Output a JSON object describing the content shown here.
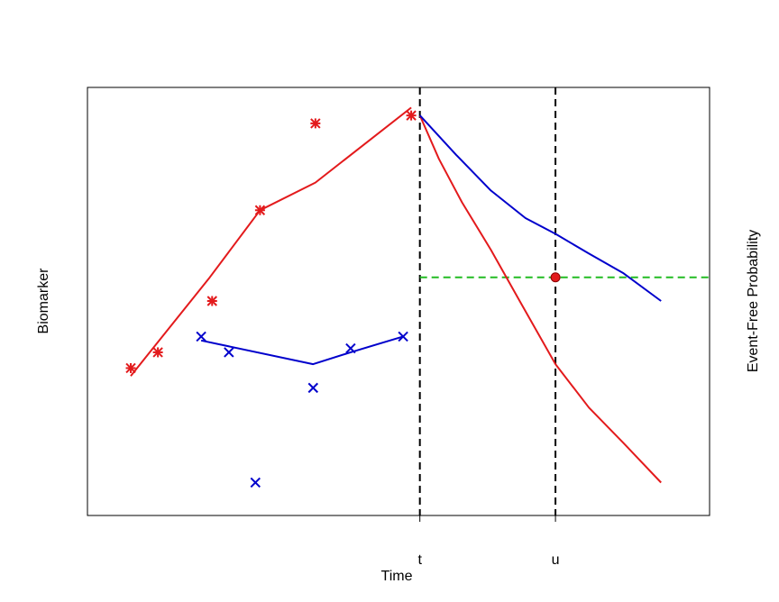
{
  "chart_data": {
    "type": "line",
    "title": "",
    "xlabel": "Time",
    "ylabel_left": "Biomarker",
    "ylabel_right": "Event-Free Probability",
    "x_ticks": [
      "t",
      "u"
    ],
    "xlim": [
      0,
      10
    ],
    "ylim_left": [
      0,
      10
    ],
    "ylim_right": [
      0,
      1
    ],
    "grid": false,
    "legend": "none",
    "vertical_lines": [
      {
        "label": "t",
        "x": 5.37,
        "color": "#000000",
        "dash": true
      },
      {
        "label": "u",
        "x": 7.72,
        "color": "#000000",
        "dash": true
      }
    ],
    "threshold": {
      "y": 0.56,
      "x_from": 5.37,
      "x_to": 10,
      "color": "#22BB22",
      "dash": true
    },
    "threshold_point": {
      "x": 7.72,
      "y": 0.56,
      "color": "#E31A1C"
    },
    "series": [
      {
        "color": "#E31A1C",
        "points": [
          {
            "x": 0.36,
            "y": 3.3
          },
          {
            "x": 0.83,
            "y": 3.7
          },
          {
            "x": 1.77,
            "y": 5.0
          },
          {
            "x": 2.6,
            "y": 7.3
          },
          {
            "x": 3.56,
            "y": 9.5
          },
          {
            "x": 5.22,
            "y": 9.7
          }
        ],
        "line": [
          {
            "x": 0.36,
            "y": 3.1
          },
          {
            "x": 1.73,
            "y": 5.6
          },
          {
            "x": 2.6,
            "y": 7.3
          },
          {
            "x": 3.56,
            "y": 8.0
          },
          {
            "x": 5.22,
            "y": 9.9
          }
        ],
        "survival": [
          {
            "x": 5.37,
            "y": 0.97
          },
          {
            "x": 5.7,
            "y": 0.86
          },
          {
            "x": 6.1,
            "y": 0.75
          },
          {
            "x": 6.6,
            "y": 0.63
          },
          {
            "x": 7.1,
            "y": 0.5
          },
          {
            "x": 7.72,
            "y": 0.34
          },
          {
            "x": 8.3,
            "y": 0.23
          },
          {
            "x": 8.9,
            "y": 0.14
          },
          {
            "x": 9.55,
            "y": 0.04
          }
        ]
      },
      {
        "color": "#0000CC",
        "points": [
          {
            "x": 1.58,
            "y": 4.1
          },
          {
            "x": 2.06,
            "y": 3.7
          },
          {
            "x": 2.52,
            "y": 0.4
          },
          {
            "x": 3.52,
            "y": 2.8
          },
          {
            "x": 4.17,
            "y": 3.8
          },
          {
            "x": 5.08,
            "y": 4.1
          }
        ],
        "line": [
          {
            "x": 1.58,
            "y": 4.0
          },
          {
            "x": 3.52,
            "y": 3.4
          },
          {
            "x": 4.17,
            "y": 3.7
          },
          {
            "x": 5.08,
            "y": 4.1
          }
        ],
        "survival": [
          {
            "x": 5.37,
            "y": 0.97
          },
          {
            "x": 6.0,
            "y": 0.87
          },
          {
            "x": 6.6,
            "y": 0.78
          },
          {
            "x": 7.2,
            "y": 0.71
          },
          {
            "x": 7.72,
            "y": 0.67
          },
          {
            "x": 8.3,
            "y": 0.62
          },
          {
            "x": 8.9,
            "y": 0.57
          },
          {
            "x": 9.55,
            "y": 0.5
          }
        ]
      }
    ]
  }
}
